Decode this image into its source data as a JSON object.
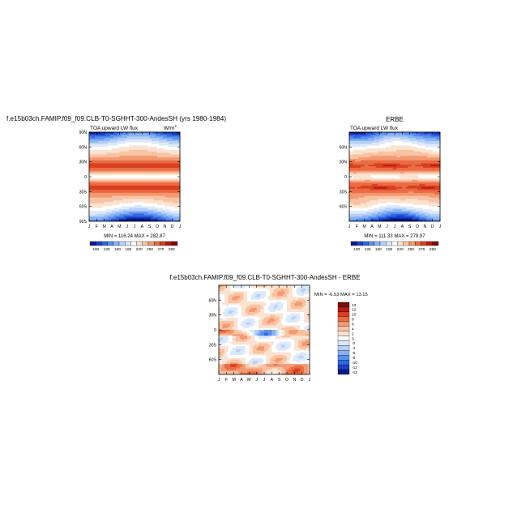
{
  "chart_data": [
    {
      "type": "heatmap",
      "title": "f.e15b03ch.FAMIP.f09_f09.CLB-T0-SGHHT-300-AndesSH (yrs 1980-1984)",
      "variable": "TOA upward LW flux",
      "units": "W/m",
      "units_superscript": "2",
      "x_tick_labels": [
        "J",
        "F",
        "M",
        "A",
        "M",
        "J",
        "J",
        "A",
        "S",
        "O",
        "N",
        "D",
        "J"
      ],
      "y_tick_labels": [
        "90N",
        "60N",
        "30N",
        "0",
        "30S",
        "60S",
        "90S"
      ],
      "y_ticks_deg": [
        90,
        60,
        30,
        0,
        -30,
        -60,
        -90
      ],
      "ylim": [
        -90,
        90
      ],
      "min": 116.24,
      "max": 282.87,
      "min_max_text": "MIN = 116.24  MAX = 282.87",
      "colorbar_levels": [
        100,
        115,
        130,
        145,
        160,
        175,
        190,
        205,
        220,
        235,
        250,
        265,
        270,
        280,
        290
      ],
      "colorbar_labels": [
        "100",
        "130",
        "160",
        "190",
        "220",
        "250",
        "270",
        "290"
      ],
      "colorbar_orientation": "horizontal",
      "palette": "blue-white-red"
    },
    {
      "type": "heatmap",
      "title": "ERBE",
      "variable": "TOA upward LW flux",
      "x_tick_labels": [
        "J",
        "F",
        "M",
        "A",
        "M",
        "J",
        "J",
        "A",
        "S",
        "O",
        "N",
        "D",
        "J"
      ],
      "y_tick_labels": [
        "60N",
        "30N",
        "0",
        "30S",
        "60S"
      ],
      "y_ticks_deg": [
        60,
        30,
        0,
        -30,
        -60
      ],
      "ylim": [
        -90,
        90
      ],
      "min": 111.33,
      "max": 279.97,
      "min_max_text": "MIN = 111.33  MAX = 279.97",
      "colorbar_levels": [
        100,
        115,
        130,
        145,
        160,
        175,
        190,
        205,
        220,
        235,
        250,
        265,
        270,
        280,
        290
      ],
      "colorbar_labels": [
        "100",
        "130",
        "160",
        "190",
        "220",
        "250",
        "270",
        "290"
      ],
      "colorbar_orientation": "horizontal",
      "palette": "blue-white-red"
    },
    {
      "type": "heatmap",
      "title": "f.e15b03ch.FAMIP.f09_f09.CLB-T0-SGHHT-300-AndesSH  -  ERBE",
      "x_tick_labels": [
        "J",
        "F",
        "M",
        "A",
        "M",
        "J",
        "J",
        "A",
        "S",
        "O",
        "N",
        "D",
        "J"
      ],
      "y_tick_labels": [
        "60N",
        "30N",
        "0",
        "30S",
        "60S"
      ],
      "y_ticks_deg": [
        60,
        30,
        0,
        -30,
        -60
      ],
      "ylim": [
        -90,
        90
      ],
      "min": -6.53,
      "max": 13.15,
      "min_max_text": "MIN =   -6.53  MAX =  13.15",
      "colorbar_labels": [
        "13",
        "12",
        "10",
        "8",
        "6",
        "4",
        "2",
        "0",
        "-2",
        "-4",
        "-6",
        "-8",
        "-10",
        "-12",
        "-13"
      ],
      "colorbar_orientation": "vertical",
      "palette": "blue-white-red"
    }
  ],
  "colors": {
    "palette": [
      "#0a1a8c",
      "#1a3fc4",
      "#2f67e0",
      "#5a8ff0",
      "#8ab2f5",
      "#b7d0f7",
      "#dde9fa",
      "#ffffff",
      "#fbe3d2",
      "#f8c3a3",
      "#f39a72",
      "#ea6c45",
      "#d9401f",
      "#b81a12",
      "#7d0a0a"
    ]
  }
}
